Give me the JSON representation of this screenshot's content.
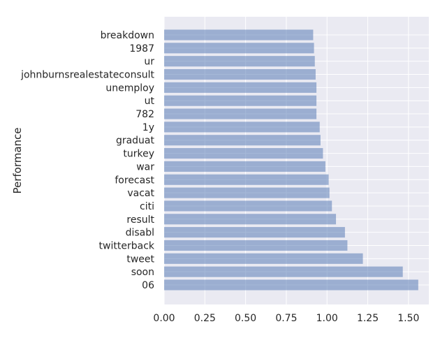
{
  "chart_data": {
    "type": "bar",
    "orientation": "horizontal",
    "title": "",
    "xlabel": "",
    "ylabel": "Performance",
    "categories": [
      "breakdown",
      "1987",
      "ur",
      "johnburnsrealestateconsult",
      "unemploy",
      "ut",
      "782",
      "1y",
      "graduat",
      "turkey",
      "war",
      "forecast",
      "vacat",
      "citi",
      "result",
      "disabl",
      "twitterback",
      "tweet",
      "soon",
      "06"
    ],
    "values": [
      0.915,
      0.92,
      0.925,
      0.93,
      0.935,
      0.935,
      0.935,
      0.955,
      0.96,
      0.975,
      0.99,
      1.01,
      1.015,
      1.03,
      1.055,
      1.11,
      1.125,
      1.22,
      1.465,
      1.56
    ],
    "xlim": [
      0,
      1.625
    ],
    "xticks": [
      "0.00",
      "0.25",
      "0.50",
      "0.75",
      "1.00",
      "1.25",
      "1.50"
    ],
    "grid": true,
    "colors": {
      "background": "#eaeaf2",
      "grid": "#ffffff",
      "bar": "#4c72b0",
      "bar_opacity": 0.5
    }
  }
}
